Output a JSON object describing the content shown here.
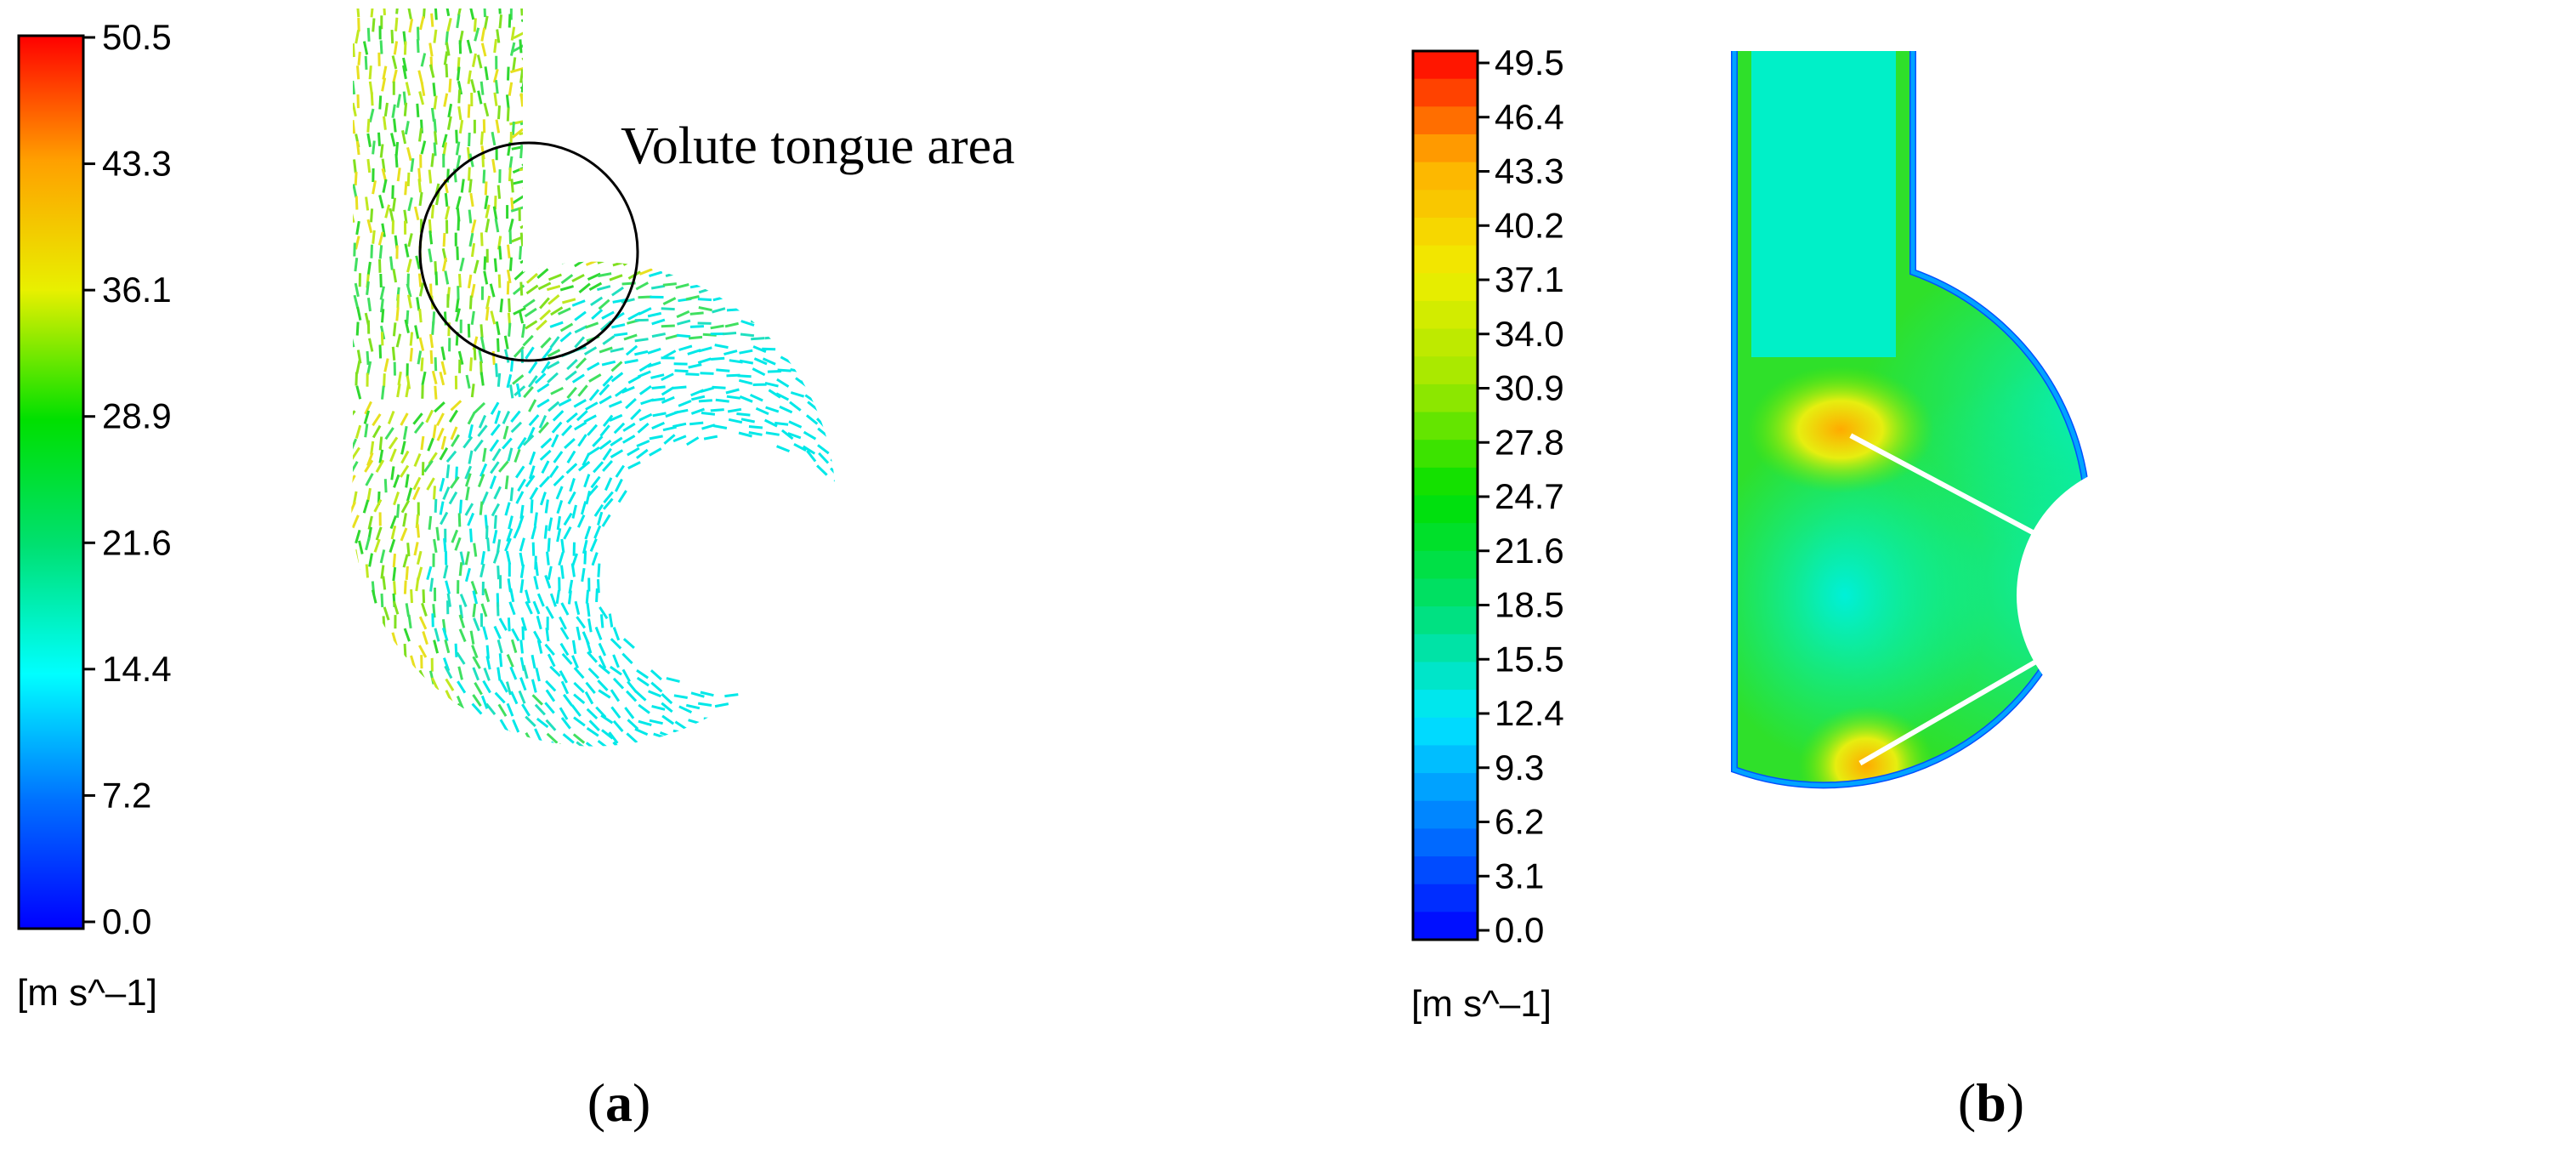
{
  "panel_a": {
    "legend": {
      "ticks": [
        "50.5",
        "43.3",
        "36.1",
        "28.9",
        "21.6",
        "14.4",
        "7.2",
        "0.0"
      ],
      "unit": "[m s^–1]"
    },
    "annotation": "Volute tongue area",
    "caption_letter": "a"
  },
  "panel_b": {
    "legend": {
      "ticks": [
        "49.5",
        "46.4",
        "43.3",
        "40.2",
        "37.1",
        "34.0",
        "30.9",
        "27.8",
        "24.7",
        "21.6",
        "18.5",
        "15.5",
        "12.4",
        "9.3",
        "6.2",
        "3.1",
        "0.0"
      ],
      "unit": "[m s^–1]"
    },
    "caption_letter": "b"
  },
  "colormap": [
    "#0000ff",
    "#0078ff",
    "#00e8ff",
    "#00e070",
    "#00e000",
    "#a0e800",
    "#f0ee00",
    "#ffb000",
    "#ff0000"
  ]
}
